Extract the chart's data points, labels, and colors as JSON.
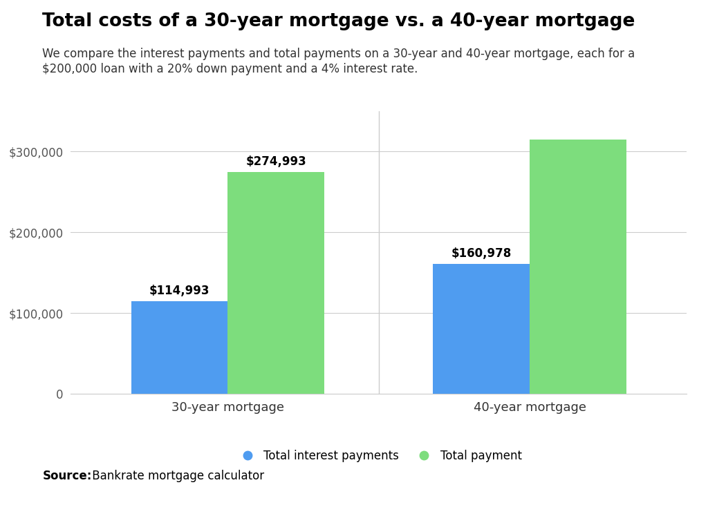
{
  "title": "Total costs of a 30-year mortgage vs. a 40-year mortgage",
  "subtitle_line1": "We compare the interest payments and total payments on a 30-year and 40-year mortgage, each for a",
  "subtitle_line2": "$200,000 loan with a 20% down payment and a 4% interest rate.",
  "source": "Bankrate mortgage calculator",
  "categories": [
    "30-year mortgage",
    "40-year mortgage"
  ],
  "interest_values": [
    114993,
    160978
  ],
  "total_values": [
    274993,
    314827
  ],
  "interest_labels": [
    "$114,993",
    "$160,978"
  ],
  "total_labels": [
    "$274,993",
    ""
  ],
  "bar_color_interest": "#4f9cf0",
  "bar_color_total": "#7ddd7d",
  "background_color": "#ffffff",
  "ylim": [
    0,
    350000
  ],
  "yticks": [
    0,
    100000,
    200000,
    300000
  ],
  "ytick_labels": [
    "0",
    "$100,000",
    "$200,000",
    "$300,000"
  ],
  "legend_interest": "Total interest payments",
  "legend_total": "Total payment",
  "bar_width": 0.32,
  "title_fontsize": 19,
  "subtitle_fontsize": 12,
  "label_fontsize": 12,
  "tick_fontsize": 12,
  "legend_fontsize": 12,
  "source_fontsize": 12
}
